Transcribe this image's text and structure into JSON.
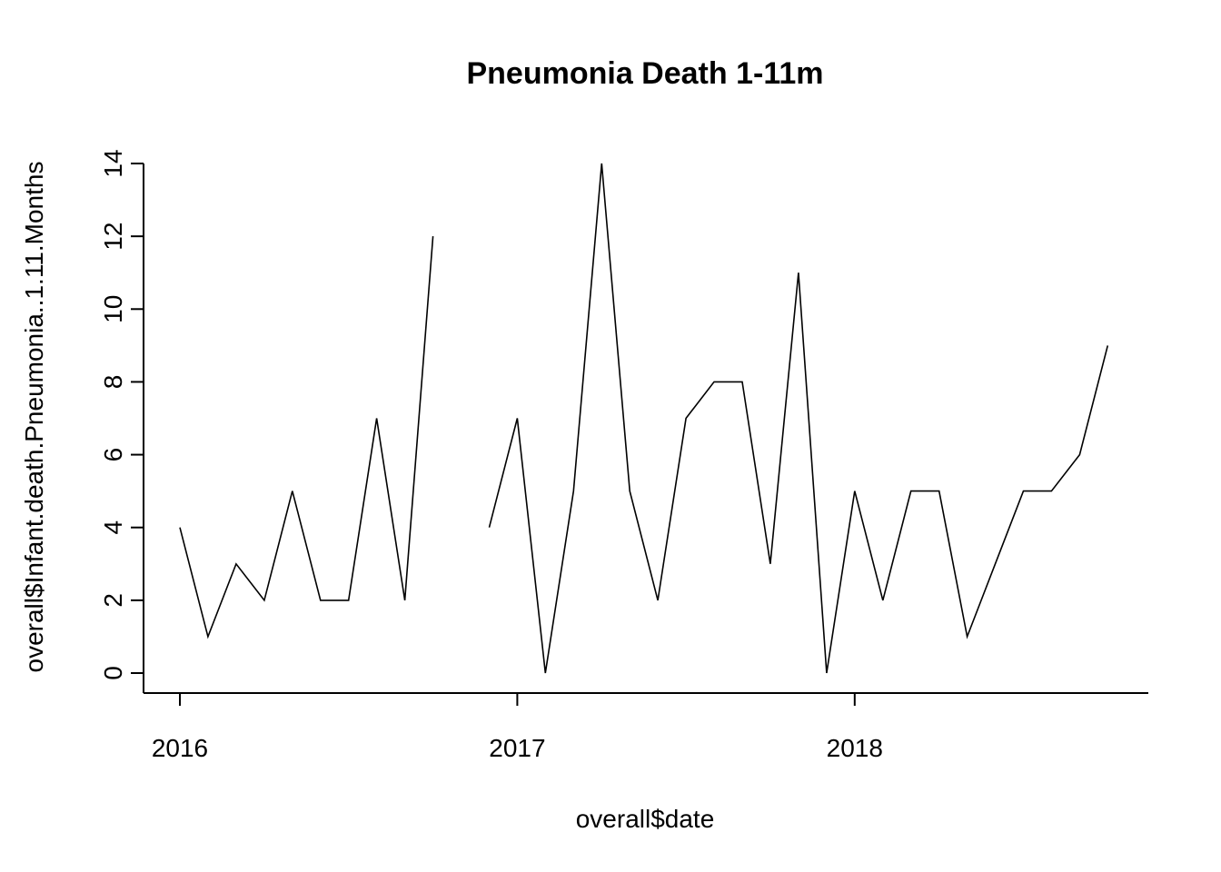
{
  "chart_data": {
    "type": "line",
    "title": "Pneumonia Death 1-11m",
    "xlabel": "overall$date",
    "ylabel": "overall$Infant.death.Pneumonia..1.11.Months",
    "x_ticks": [
      "2016",
      "2017",
      "2018"
    ],
    "y_ticks": [
      0,
      2,
      4,
      6,
      8,
      10,
      12,
      14
    ],
    "ylim": [
      0,
      14
    ],
    "xlim": [
      "2016-01",
      "2018-10"
    ],
    "grid": false,
    "legend": "none",
    "colors": {
      "line": "#000000",
      "axis": "#000000",
      "background": "#ffffff"
    },
    "x": [
      "2016-01",
      "2016-02",
      "2016-03",
      "2016-04",
      "2016-05",
      "2016-06",
      "2016-07",
      "2016-08",
      "2016-09",
      "2016-10",
      "2016-11",
      "2016-12",
      "2017-01",
      "2017-02",
      "2017-03",
      "2017-04",
      "2017-05",
      "2017-06",
      "2017-07",
      "2017-08",
      "2017-09",
      "2017-10",
      "2017-11",
      "2017-12",
      "2018-01",
      "2018-02",
      "2018-03",
      "2018-04",
      "2018-05",
      "2018-06",
      "2018-07",
      "2018-08",
      "2018-09",
      "2018-10"
    ],
    "series": [
      {
        "values": [
          4,
          1,
          3,
          2,
          5,
          2,
          2,
          7,
          2,
          12,
          null,
          4,
          7,
          0,
          5,
          14,
          5,
          2,
          7,
          8,
          8,
          3,
          11,
          0,
          5,
          2,
          5,
          5,
          1,
          3,
          5,
          5,
          6,
          9
        ]
      }
    ]
  }
}
